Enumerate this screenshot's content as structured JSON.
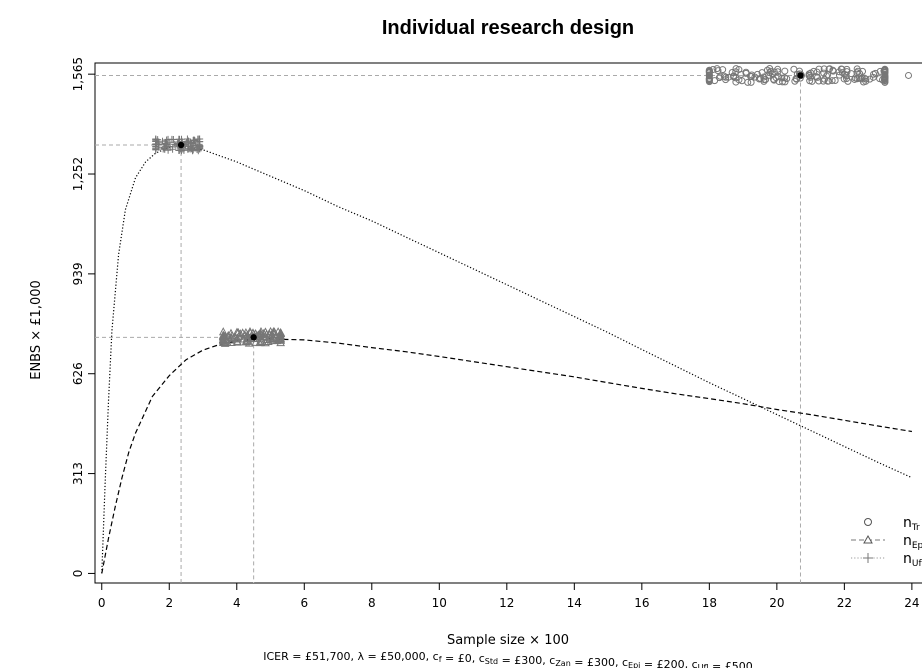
{
  "chart_data": {
    "type": "line",
    "title": "Individual research design",
    "xlabel": "Sample size × 100",
    "ylabel": "ENBS × £1,000",
    "footnote": "ICER = £51,700, λ = £50,000, c_f = £0, c_Std = £300, c_Zan = £300, c_Epi = £200, c_Ufl = £500",
    "footnote_parts": [
      {
        "t": "ICER = £51,700, λ = £50,000, c"
      },
      {
        "s": "f"
      },
      {
        "t": " = £0, c"
      },
      {
        "s": "Std"
      },
      {
        "t": " = £300, c"
      },
      {
        "s": "Zan"
      },
      {
        "t": " = £300, c"
      },
      {
        "s": "Epi"
      },
      {
        "t": " = £200, c"
      },
      {
        "s": "Ufl"
      },
      {
        "t": " = £500"
      }
    ],
    "xlim": [
      -0.2,
      24.3
    ],
    "ylim": [
      -30,
      1600
    ],
    "x_ticks": [
      0,
      2,
      4,
      6,
      8,
      10,
      12,
      14,
      16,
      18,
      20,
      22,
      24
    ],
    "y_ticks": [
      0,
      313,
      626,
      939,
      1252,
      1565
    ],
    "y_tick_labels": [
      "0",
      "313",
      "626",
      "939",
      "1,252",
      "1,565"
    ],
    "grid": false,
    "legend_position": "bottom-right",
    "series": [
      {
        "name": "n_Tr",
        "label_main": "n",
        "label_sub": "Tr",
        "style": "points-circle",
        "optimum": {
          "x": 20.7,
          "y": 1561
        },
        "cluster_x_range": [
          18.0,
          23.2
        ],
        "outlier_x": [
          23.9
        ]
      },
      {
        "name": "n_Epi",
        "label_main": "n",
        "label_sub": "Epi",
        "style": "dashed-triangle",
        "optimum": {
          "x": 4.5,
          "y": 740
        },
        "cluster_x_range": [
          3.6,
          5.3
        ],
        "x": [
          0,
          0.2,
          0.4,
          0.6,
          0.8,
          1.0,
          1.5,
          2.0,
          2.5,
          3.0,
          3.5,
          4.0,
          4.5,
          5.0,
          6.0,
          7.0,
          8.0,
          9.0,
          10.0,
          11.0,
          12.0,
          13.0,
          14.0,
          15.0,
          16.0,
          17.0,
          18.0,
          19.0,
          20.0,
          21.0,
          22.0,
          23.0,
          24.0
        ],
        "values": [
          0,
          110,
          210,
          300,
          380,
          440,
          555,
          620,
          670,
          700,
          718,
          728,
          734,
          735,
          732,
          722,
          708,
          695,
          680,
          664,
          648,
          632,
          616,
          598,
          580,
          563,
          548,
          532,
          514,
          498,
          480,
          462,
          445
        ]
      },
      {
        "name": "n_Ufl",
        "label_main": "n",
        "label_sub": "Ufl",
        "style": "dotted-plus",
        "optimum": {
          "x": 2.35,
          "y": 1343
        },
        "cluster_x_range": [
          1.6,
          2.9
        ],
        "x": [
          0,
          0.1,
          0.2,
          0.3,
          0.5,
          0.7,
          1.0,
          1.3,
          1.6,
          2.0,
          2.35,
          3.0,
          4.0,
          5.0,
          6.0,
          7.0,
          8.0,
          9.0,
          10.0,
          11.0,
          12.0,
          13.0,
          14.0,
          15.0,
          16.0,
          17.0,
          18.0,
          19.0,
          20.0,
          21.0,
          22.0,
          23.0,
          24.0
        ],
        "values": [
          0,
          280,
          540,
          760,
          1000,
          1140,
          1240,
          1290,
          1318,
          1335,
          1340,
          1328,
          1290,
          1245,
          1200,
          1150,
          1105,
          1055,
          1005,
          955,
          905,
          855,
          805,
          755,
          702,
          650,
          598,
          548,
          498,
          448,
          398,
          348,
          300
        ]
      }
    ]
  }
}
